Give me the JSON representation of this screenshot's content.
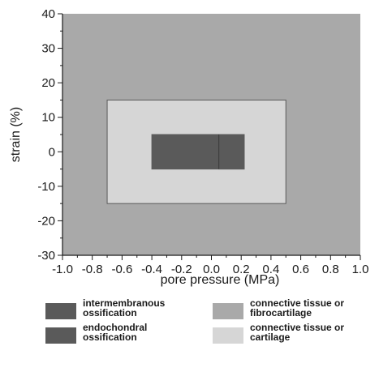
{
  "chart_data": {
    "type": "region",
    "xlabel": "pore pressure (MPa)",
    "ylabel": "strain (%)",
    "xlim": [
      -1.0,
      1.0
    ],
    "ylim": [
      -30,
      40
    ],
    "x_ticks": [
      -1.0,
      -0.8,
      -0.6,
      -0.4,
      -0.2,
      0.0,
      0.2,
      0.4,
      0.6,
      0.8,
      1.0
    ],
    "x_tick_labels": [
      "-1.0",
      "-0.8",
      "-0.6",
      "-0.4",
      "-0.2",
      "0.0",
      "0.2",
      "0.4",
      "0.6",
      "0.8",
      "1.0"
    ],
    "y_ticks": [
      -30,
      -20,
      -10,
      0,
      10,
      20,
      30,
      40
    ],
    "y_tick_labels": [
      "-30",
      "-20",
      "-10",
      "0",
      "10",
      "20",
      "30",
      "40"
    ],
    "grid": false,
    "legend_position": "bottom",
    "regions": [
      {
        "name": "connective tissue or fibrocartilage",
        "x": [
          -1.0,
          1.0
        ],
        "y": [
          -30,
          40
        ],
        "color": "#a9a9a9"
      },
      {
        "name": "connective tissue or cartilage",
        "x": [
          -0.7,
          0.5
        ],
        "y": [
          -15,
          15
        ],
        "color": "#d6d6d6"
      },
      {
        "name": "intermembranous ossification",
        "x": [
          -0.4,
          0.22
        ],
        "y": [
          -5,
          5
        ],
        "color": "#5a5a5a"
      },
      {
        "name": "endochondral ossification",
        "x": [
          0.05,
          0.22
        ],
        "y": [
          -5,
          5
        ],
        "color": "#5a5a5a"
      }
    ],
    "boundary_lines": [
      {
        "x": 0.05,
        "y": [
          -5,
          5
        ]
      }
    ]
  },
  "legend": {
    "items": [
      {
        "label": "intermembranous\nossification",
        "color": "#5a5a5a"
      },
      {
        "label": "endochondral\nossification",
        "color": "#5a5a5a"
      },
      {
        "label": "connective tissue or\nfibrocartilage",
        "color": "#a9a9a9"
      },
      {
        "label": "connective tissue or\ncartilage",
        "color": "#d6d6d6"
      }
    ]
  }
}
